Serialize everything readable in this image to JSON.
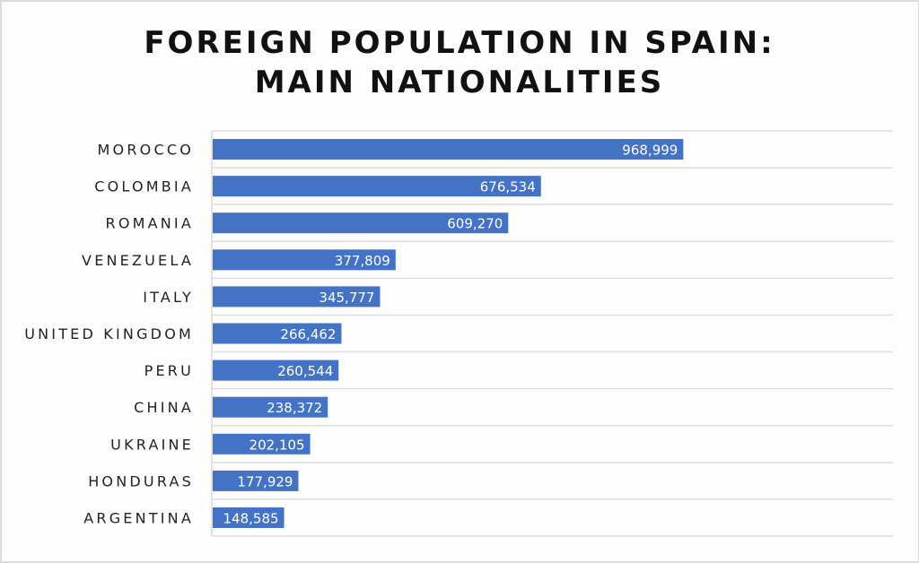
{
  "chart_data": {
    "type": "bar",
    "orientation": "horizontal",
    "title_lines": [
      "FOREIGN POPULATION IN SPAIN:",
      "MAIN NATIONALITIES"
    ],
    "categories": [
      "MOROCCO",
      "COLOMBIA",
      "ROMANIA",
      "VENEZUELA",
      "ITALY",
      "UNITED KINGDOM",
      "PERU",
      "CHINA",
      "UKRAINE",
      "HONDURAS",
      "ARGENTINA"
    ],
    "values": [
      968999,
      676534,
      609270,
      377809,
      345777,
      266462,
      260544,
      238372,
      202105,
      177929,
      148585
    ],
    "labels": [
      "968,999",
      "676,534",
      "609,270",
      "377,809",
      "345,777",
      "266,462",
      "260,544",
      "238,372",
      "202,105",
      "177,929",
      "148,585"
    ],
    "xlim": [
      0,
      1400000
    ],
    "grid": true,
    "bar_color": "#4472c4",
    "xlabel": "",
    "ylabel": ""
  }
}
